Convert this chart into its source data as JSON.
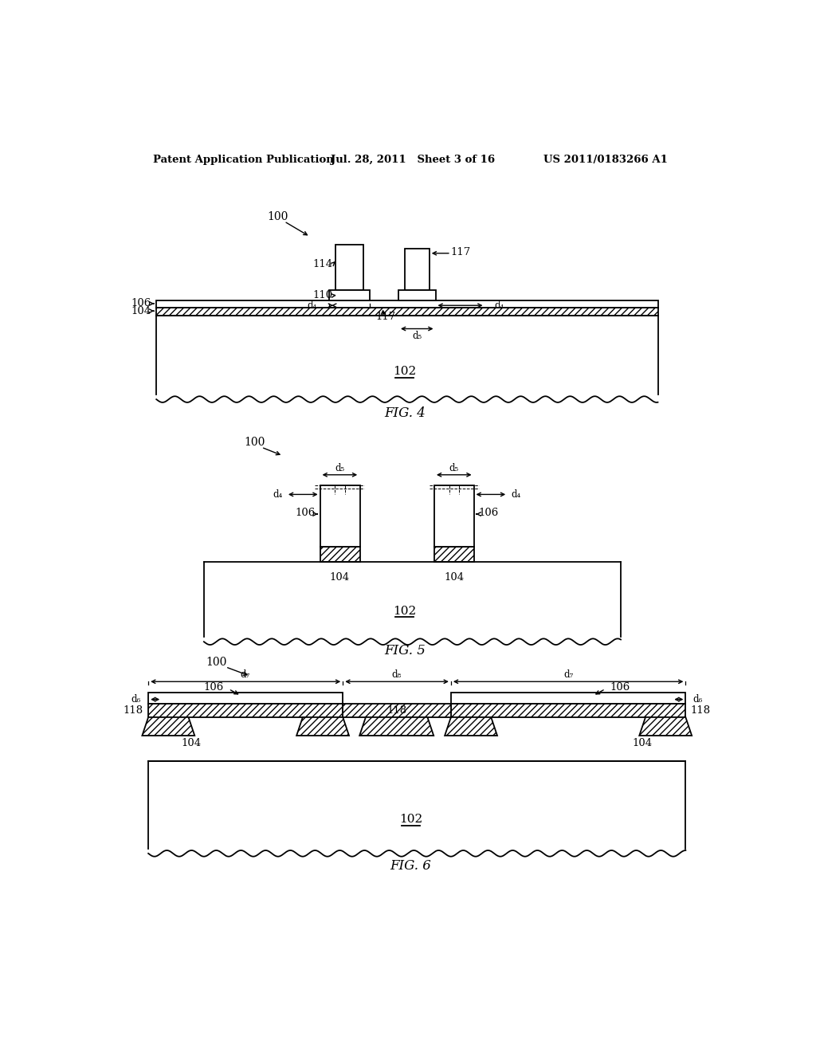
{
  "header_left": "Patent Application Publication",
  "header_mid": "Jul. 28, 2011   Sheet 3 of 16",
  "header_right": "US 2011/0183266 A1",
  "fig4_label": "FIG. 4",
  "fig5_label": "FIG. 5",
  "fig6_label": "FIG. 6",
  "background": "#ffffff",
  "line_color": "#000000"
}
